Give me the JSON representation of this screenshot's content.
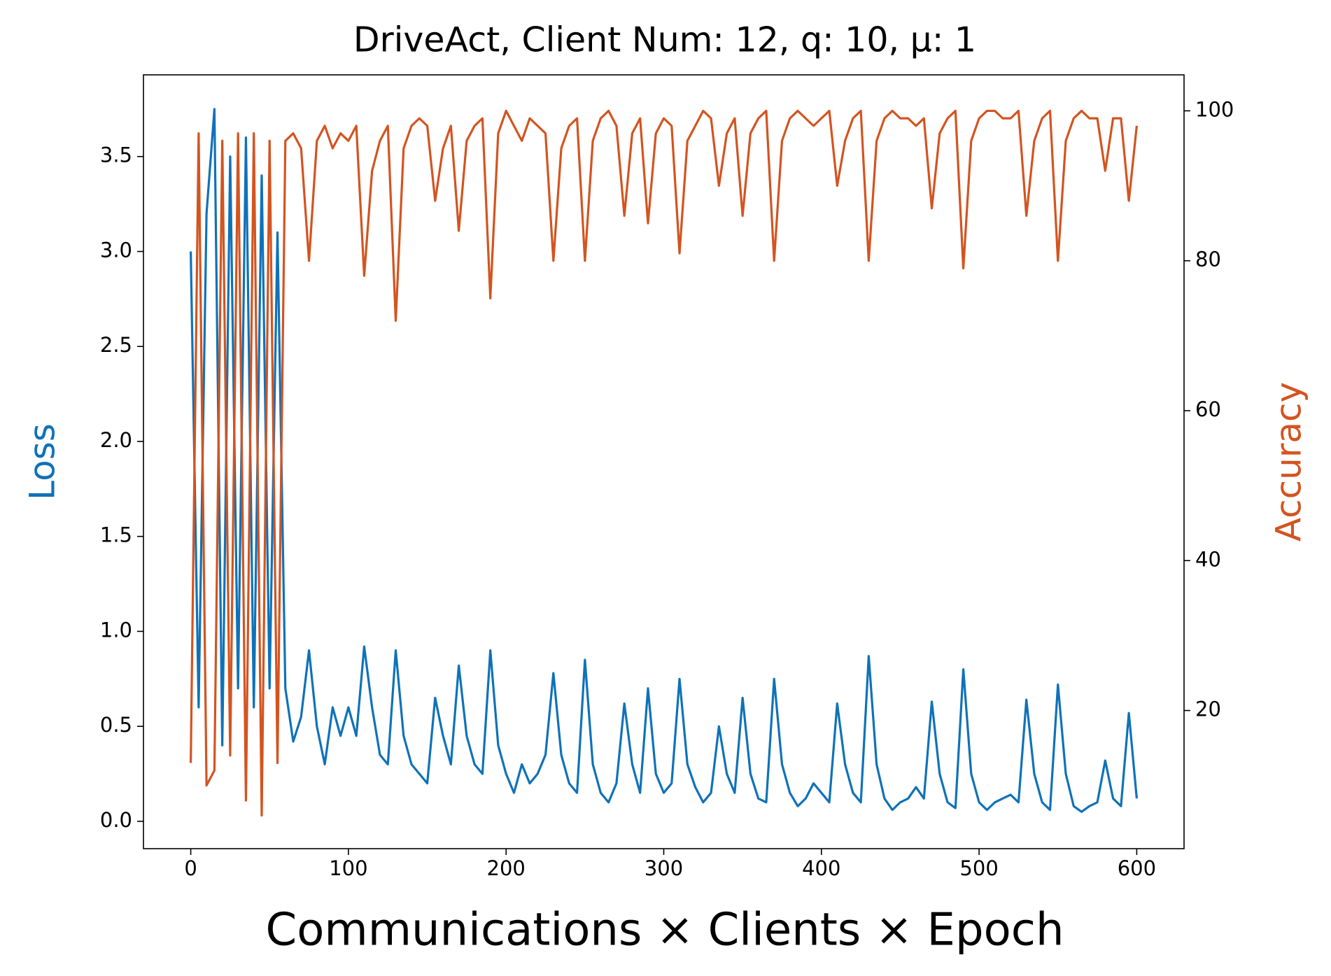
{
  "chart_data": {
    "type": "line",
    "title": "DriveAct, Client Num: 12, q: 10, μ: 1",
    "x_label": "Communications × Clients × Epoch",
    "y_label": "Loss",
    "y2_label": "Accuracy",
    "x": [
      0,
      5,
      10,
      15,
      20,
      25,
      30,
      35,
      40,
      45,
      50,
      55,
      60,
      65,
      70,
      75,
      80,
      85,
      90,
      95,
      100,
      105,
      110,
      115,
      120,
      125,
      130,
      135,
      140,
      145,
      150,
      155,
      160,
      165,
      170,
      175,
      180,
      185,
      190,
      195,
      200,
      205,
      210,
      215,
      220,
      225,
      230,
      235,
      240,
      245,
      250,
      255,
      260,
      265,
      270,
      275,
      280,
      285,
      290,
      295,
      300,
      305,
      310,
      315,
      320,
      325,
      330,
      335,
      340,
      345,
      350,
      355,
      360,
      365,
      370,
      375,
      380,
      385,
      390,
      395,
      400,
      405,
      410,
      415,
      420,
      425,
      430,
      435,
      440,
      445,
      450,
      455,
      460,
      465,
      470,
      475,
      480,
      485,
      490,
      495,
      500,
      505,
      510,
      515,
      520,
      525,
      530,
      535,
      540,
      545,
      550,
      555,
      560,
      565,
      570,
      575,
      580,
      585,
      590,
      595,
      600
    ],
    "series": [
      {
        "name": "Loss",
        "color": "#0f72b8",
        "axis": "y",
        "values": [
          3.0,
          0.6,
          3.2,
          3.75,
          0.4,
          3.5,
          0.7,
          3.6,
          0.6,
          3.4,
          0.7,
          3.1,
          0.7,
          0.42,
          0.55,
          0.9,
          0.5,
          0.3,
          0.6,
          0.45,
          0.6,
          0.45,
          0.92,
          0.6,
          0.35,
          0.3,
          0.9,
          0.45,
          0.3,
          0.25,
          0.2,
          0.65,
          0.45,
          0.3,
          0.82,
          0.45,
          0.3,
          0.25,
          0.9,
          0.4,
          0.25,
          0.15,
          0.3,
          0.2,
          0.25,
          0.35,
          0.78,
          0.35,
          0.2,
          0.15,
          0.85,
          0.3,
          0.15,
          0.1,
          0.2,
          0.62,
          0.3,
          0.15,
          0.7,
          0.25,
          0.15,
          0.2,
          0.75,
          0.3,
          0.18,
          0.1,
          0.15,
          0.5,
          0.25,
          0.15,
          0.65,
          0.25,
          0.12,
          0.1,
          0.75,
          0.3,
          0.15,
          0.08,
          0.12,
          0.2,
          0.15,
          0.1,
          0.62,
          0.3,
          0.15,
          0.1,
          0.87,
          0.3,
          0.12,
          0.06,
          0.1,
          0.12,
          0.18,
          0.12,
          0.63,
          0.25,
          0.1,
          0.07,
          0.8,
          0.25,
          0.1,
          0.06,
          0.1,
          0.12,
          0.14,
          0.1,
          0.64,
          0.25,
          0.1,
          0.06,
          0.72,
          0.25,
          0.08,
          0.05,
          0.08,
          0.1,
          0.32,
          0.12,
          0.08,
          0.57,
          0.12
        ]
      },
      {
        "name": "Accuracy",
        "color": "#d35420",
        "axis": "y2",
        "values": [
          13,
          97,
          10,
          12,
          96,
          14,
          97,
          8,
          97,
          6,
          96,
          13,
          96,
          97,
          95,
          80,
          96,
          98,
          95,
          97,
          96,
          98,
          78,
          92,
          96,
          98,
          72,
          95,
          98,
          99,
          98,
          88,
          95,
          98,
          84,
          96,
          98,
          99,
          75,
          97,
          100,
          98,
          96,
          99,
          98,
          97,
          80,
          95,
          98,
          99,
          80,
          96,
          99,
          100,
          98,
          86,
          97,
          99,
          85,
          97,
          99,
          98,
          81,
          96,
          98,
          100,
          99,
          90,
          97,
          99,
          86,
          97,
          99,
          100,
          80,
          96,
          99,
          100,
          99,
          98,
          99,
          100,
          90,
          96,
          99,
          100,
          80,
          96,
          99,
          100,
          99,
          99,
          98,
          99,
          87,
          97,
          99,
          100,
          79,
          96,
          99,
          100,
          100,
          99,
          99,
          100,
          86,
          96,
          99,
          100,
          80,
          96,
          99,
          100,
          99,
          99,
          92,
          99,
          99,
          88,
          98
        ]
      }
    ],
    "xlim": [
      -30,
      630
    ],
    "xticks": [
      0,
      100,
      200,
      300,
      400,
      500,
      600
    ],
    "ylim": [
      -0.144,
      3.93
    ],
    "yticks": [
      {
        "value": 0,
        "label": "0.0"
      },
      0.5,
      {
        "value": 1,
        "label": "1.0"
      },
      1.5,
      {
        "value": 2,
        "label": "2.0"
      },
      2.5,
      {
        "value": 3,
        "label": "3.0"
      },
      3.5
    ],
    "y2lim": [
      1.57,
      104.8
    ],
    "y2ticks": [
      20,
      40,
      60,
      80,
      100
    ],
    "grid": false
  }
}
